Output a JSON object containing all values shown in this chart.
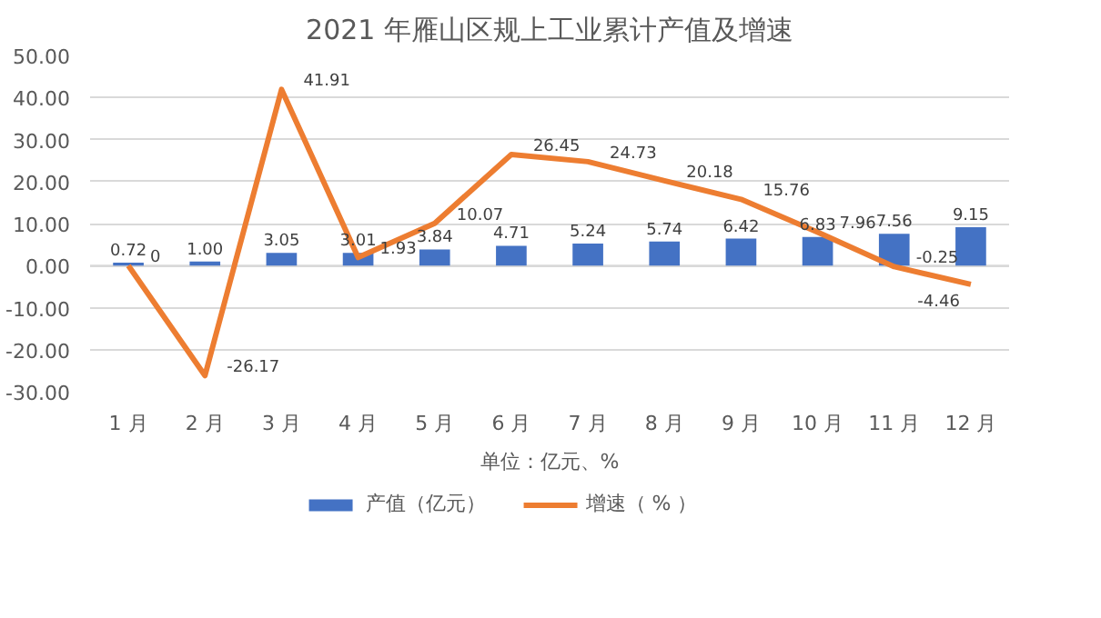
{
  "chart_data": {
    "type": "bar",
    "title": "2021 年雁山区规上工业累计产值及增速",
    "xlabel": "单位：亿元、%",
    "categories": [
      "1 月",
      "2 月",
      "3 月",
      "4 月",
      "5 月",
      "6 月",
      "7 月",
      "8 月",
      "9 月",
      "10 月",
      "11 月",
      "12 月"
    ],
    "series": [
      {
        "name": "产值（亿元）",
        "color": "#4472c4",
        "values": [
          0.72,
          1.0,
          3.05,
          3.01,
          3.84,
          4.71,
          5.24,
          5.74,
          6.42,
          6.83,
          7.56,
          9.15
        ],
        "value_labels": [
          "0.72",
          "1.00",
          "3.05",
          "3.01",
          "3.84",
          "4.71",
          "5.24",
          "5.74",
          "6.42",
          "6.83",
          "7.56",
          "9.15"
        ]
      },
      {
        "name": "增速（ % ）",
        "type": "line",
        "color": "#ed7d31",
        "values": [
          0,
          -26.17,
          41.91,
          1.93,
          10.07,
          26.45,
          24.73,
          20.18,
          15.76,
          7.96,
          -0.25,
          -4.46
        ],
        "value_labels": [
          "0",
          "-26.17",
          "41.91",
          "1.93",
          "10.07",
          "26.45",
          "24.73",
          "20.18",
          "15.76",
          "7.96",
          "-0.25",
          "-4.46"
        ]
      }
    ],
    "ylim": [
      -30,
      50
    ],
    "yticks": [
      {
        "value": -30,
        "label": "-30.00"
      },
      {
        "value": -20,
        "label": "-20.00"
      },
      {
        "value": -10,
        "label": "-10.00"
      },
      {
        "value": 0,
        "label": "0.00"
      },
      {
        "value": 10,
        "label": "10.00"
      },
      {
        "value": 20,
        "label": "20.00"
      },
      {
        "value": 30,
        "label": "30.00"
      },
      {
        "value": 40,
        "label": "40.00"
      },
      {
        "value": 50,
        "label": "50.00"
      }
    ],
    "grid": "y",
    "legend": "bottom"
  }
}
